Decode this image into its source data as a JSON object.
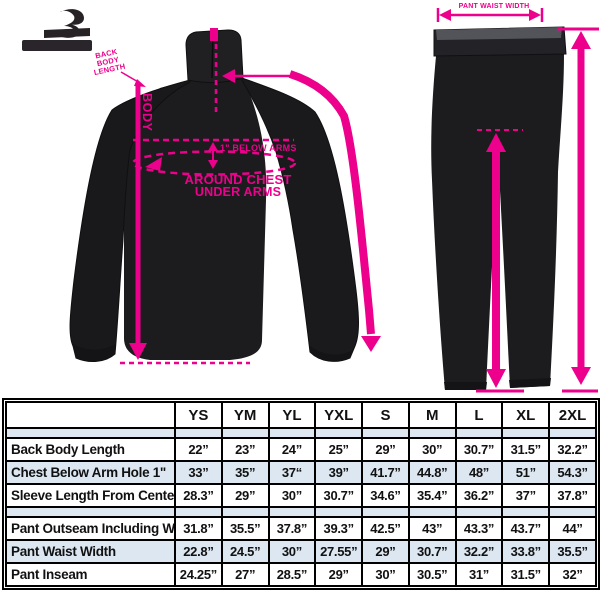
{
  "colors": {
    "accent_pink": "#EC008C",
    "garment_black": "#1C1C1E",
    "table_alt_row": "#DCE7F1",
    "table_border": "#000000"
  },
  "jacket": {
    "note_lines": [
      "BACK",
      "BODY",
      "LENGTH"
    ],
    "body_label": "BODY",
    "below_arms_label": "1\" BELOW ARMS",
    "around_chest_line1": "AROUND CHEST",
    "around_chest_line2": "UNDER ARMS"
  },
  "pants": {
    "waist_label": "PANT WAIST WIDTH"
  },
  "size_table": {
    "columns": [
      "YS",
      "YM",
      "YL",
      "YXL",
      "S",
      "M",
      "L",
      "XL",
      "2XL"
    ],
    "groups": [
      [
        {
          "label": "Back Body Length",
          "values": [
            "22”",
            "23”",
            "24”",
            "25”",
            "29”",
            "30”",
            "30.7”",
            "31.5”",
            "32.2”"
          ]
        },
        {
          "label": "Chest Below Arm Hole 1\"",
          "values": [
            "33”",
            "35”",
            "37“",
            "39”",
            "41.7”",
            "44.8”",
            "48”",
            "51”",
            "54.3”"
          ]
        },
        {
          "label": "Sleeve Length From Center Back",
          "values": [
            "28.3”",
            "29”",
            "30”",
            "30.7”",
            "34.6”",
            "35.4”",
            "36.2”",
            "37”",
            "37.8”"
          ]
        }
      ],
      [
        {
          "label": "Pant Outseam Including Waist",
          "values": [
            "31.8”",
            "35.5”",
            "37.8”",
            "39.3”",
            "42.5”",
            "43”",
            "43.3”",
            "43.7”",
            "44”"
          ]
        },
        {
          "label": "Pant Waist Width",
          "values": [
            "22.8”",
            "24.5”",
            "30”",
            "27.55”",
            "29”",
            "30.7”",
            "32.2”",
            "33.8”",
            "35.5”"
          ]
        },
        {
          "label": "Pant Inseam",
          "values": [
            "24.25”",
            "27”",
            "28.5”",
            "29”",
            "30”",
            "30.5”",
            "31”",
            "31.5”",
            "32”"
          ]
        }
      ]
    ]
  }
}
